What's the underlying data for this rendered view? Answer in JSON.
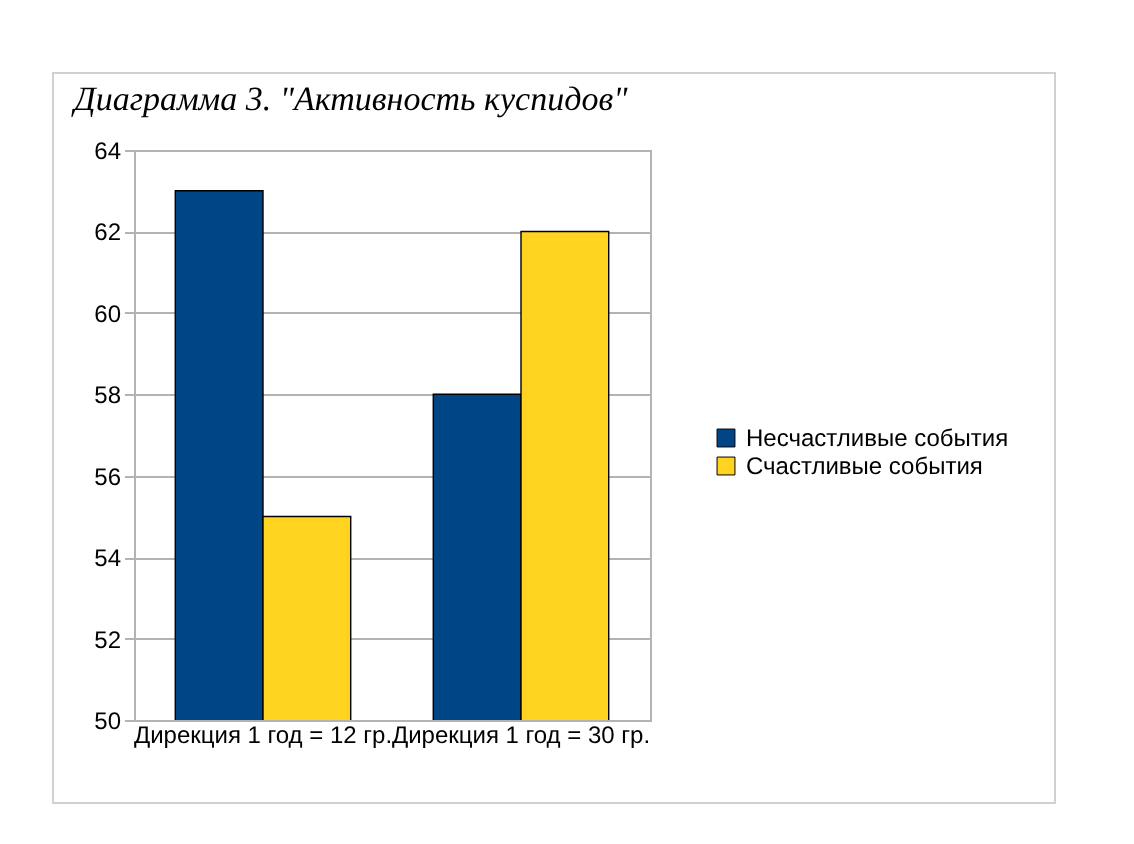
{
  "chart_data": {
    "type": "bar",
    "title": "Диаграмма 3. \"Активность куспидов\"",
    "categories": [
      "Дирекция 1 год = 12 гр.",
      "Дирекция 1 год = 30 гр."
    ],
    "series": [
      {
        "name": "Несчастливые события",
        "color": "#004586",
        "values": [
          63,
          58
        ]
      },
      {
        "name": "Счастливые события",
        "color": "#ffd320",
        "values": [
          55,
          62
        ]
      }
    ],
    "ylim": [
      50,
      64
    ],
    "yticks": [
      50,
      52,
      54,
      56,
      58,
      60,
      62,
      64
    ],
    "grid": "y",
    "legend": "right"
  }
}
